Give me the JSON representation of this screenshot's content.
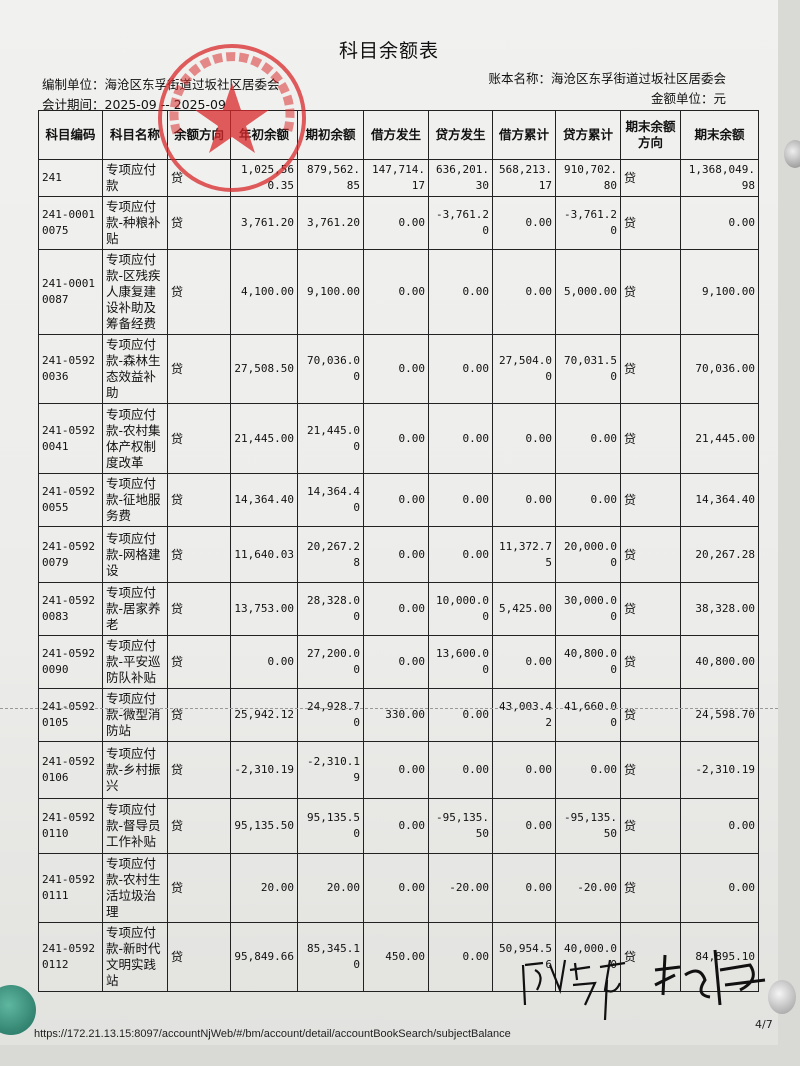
{
  "document": {
    "title": "科目余额表",
    "compiler_label": "编制单位：海沧区东孚街道过坂社区居委会",
    "period_label": "会计期间：2025-09 -- 2025-09",
    "ledger_label": "账本名称：海沧区东孚街道过坂社区居委会",
    "unit_label": "金额单位：元",
    "stamp_text": "厦门市海沧区东孚街道过坂社区居民委员会",
    "url": "https://172.21.13.15:8097/accountNjWeb/#/bm/account/detail/accountBookSearch/subjectBalance",
    "page": "4/7",
    "signatures": [
      "陈艺萍",
      "林晓婷"
    ]
  },
  "table": {
    "headers": [
      "科目编码",
      "科目名称",
      "余额方向",
      "年初余额",
      "期初余额",
      "借方发生",
      "贷方发生",
      "借方累计",
      "贷方累计",
      "期末余额方向",
      "期末余额"
    ],
    "rows": [
      [
        "241",
        "专项应付款",
        "贷",
        "1,025,560.35",
        "879,562.85",
        "147,714.17",
        "636,201.30",
        "568,213.17",
        "910,702.80",
        "贷",
        "1,368,049.98"
      ],
      [
        "241-00010075",
        "专项应付款-种粮补贴",
        "贷",
        "3,761.20",
        "3,761.20",
        "0.00",
        "-3,761.20",
        "0.00",
        "-3,761.20",
        "贷",
        "0.00"
      ],
      [
        "241-00010087",
        "专项应付款-区残疾人康复建设补助及筹备经费",
        "贷",
        "4,100.00",
        "9,100.00",
        "0.00",
        "0.00",
        "0.00",
        "5,000.00",
        "贷",
        "9,100.00"
      ],
      [
        "241-05920036",
        "专项应付款-森林生态效益补助",
        "贷",
        "27,508.50",
        "70,036.00",
        "0.00",
        "0.00",
        "27,504.00",
        "70,031.50",
        "贷",
        "70,036.00"
      ],
      [
        "241-05920041",
        "专项应付款-农村集体产权制度改革",
        "贷",
        "21,445.00",
        "21,445.00",
        "0.00",
        "0.00",
        "0.00",
        "0.00",
        "贷",
        "21,445.00"
      ],
      [
        "241-05920055",
        "专项应付款-征地服务费",
        "贷",
        "14,364.40",
        "14,364.40",
        "0.00",
        "0.00",
        "0.00",
        "0.00",
        "贷",
        "14,364.40"
      ],
      [
        "241-05920079",
        "专项应付款-网格建设",
        "贷",
        "11,640.03",
        "20,267.28",
        "0.00",
        "0.00",
        "11,372.75",
        "20,000.00",
        "贷",
        "20,267.28"
      ],
      [
        "241-05920083",
        "专项应付款-居家养老",
        "贷",
        "13,753.00",
        "28,328.00",
        "0.00",
        "10,000.00",
        "5,425.00",
        "30,000.00",
        "贷",
        "38,328.00"
      ],
      [
        "241-05920090",
        "专项应付款-平安巡防队补贴",
        "贷",
        "0.00",
        "27,200.00",
        "0.00",
        "13,600.00",
        "0.00",
        "40,800.00",
        "贷",
        "40,800.00"
      ],
      [
        "241-05920105",
        "专项应付款-微型消防站",
        "贷",
        "25,942.12",
        "24,928.70",
        "330.00",
        "0.00",
        "43,003.42",
        "41,660.00",
        "贷",
        "24,598.70"
      ],
      [
        "241-05920106",
        "专项应付款-乡村振兴",
        "贷",
        "-2,310.19",
        "-2,310.19",
        "0.00",
        "0.00",
        "0.00",
        "0.00",
        "贷",
        "-2,310.19"
      ],
      [
        "241-05920110",
        "专项应付款-督导员工作补贴",
        "贷",
        "95,135.50",
        "95,135.50",
        "0.00",
        "-95,135.50",
        "0.00",
        "-95,135.50",
        "贷",
        "0.00"
      ],
      [
        "241-05920111",
        "专项应付款-农村生活垃圾治理",
        "贷",
        "20.00",
        "20.00",
        "0.00",
        "-20.00",
        "0.00",
        "-20.00",
        "贷",
        "0.00"
      ],
      [
        "241-05920112",
        "专项应付款-新时代文明实践站",
        "贷",
        "95,849.66",
        "85,345.10",
        "450.00",
        "0.00",
        "50,954.56",
        "40,000.00",
        "贷",
        "84,895.10"
      ]
    ]
  },
  "colors": {
    "stamp": "#d8282a",
    "ink": "#111111"
  }
}
